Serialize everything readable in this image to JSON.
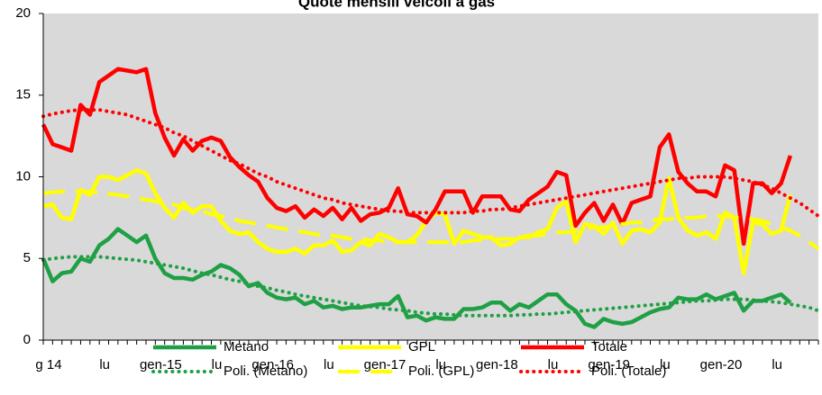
{
  "chart_data": {
    "type": "line",
    "title": "Quote mensili veicoli a gas",
    "categories": [
      "g 14",
      null,
      null,
      null,
      null,
      null,
      "lu",
      null,
      null,
      null,
      null,
      null,
      "gen-15",
      null,
      null,
      null,
      null,
      null,
      "lu",
      null,
      null,
      null,
      null,
      null,
      "gen-16",
      null,
      null,
      null,
      null,
      null,
      "lu",
      null,
      null,
      null,
      null,
      null,
      "gen-17",
      null,
      null,
      null,
      null,
      null,
      "lu",
      null,
      null,
      null,
      null,
      null,
      "gen-18",
      null,
      null,
      null,
      null,
      null,
      "lu",
      null,
      null,
      null,
      null,
      null,
      "gen-19",
      null,
      null,
      null,
      null,
      null,
      "lu",
      null,
      null,
      null,
      null,
      null,
      "gen-20",
      null,
      null,
      null,
      null,
      null,
      "lu",
      null,
      null,
      null,
      null,
      null
    ],
    "ylim": [
      0,
      20
    ],
    "yticks": [
      0,
      5,
      10,
      15,
      20
    ],
    "grid": false,
    "background": "#d9d9d9",
    "series": [
      {
        "name": "Metano",
        "color": "#1fa045",
        "style": "solid",
        "values": [
          5.0,
          3.6,
          4.1,
          4.2,
          5.0,
          4.8,
          5.8,
          6.2,
          6.8,
          6.4,
          6.0,
          6.4,
          5.0,
          4.1,
          3.8,
          3.8,
          3.7,
          4.0,
          4.2,
          4.6,
          4.4,
          4.0,
          3.3,
          3.5,
          2.9,
          2.6,
          2.5,
          2.6,
          2.2,
          2.4,
          2.0,
          2.1,
          1.9,
          2.0,
          2.0,
          2.1,
          2.2,
          2.2,
          2.7,
          1.4,
          1.5,
          1.2,
          1.4,
          1.3,
          1.3,
          1.9,
          1.9,
          2.0,
          2.3,
          2.3,
          1.8,
          2.2,
          2.0,
          2.4,
          2.8,
          2.8,
          2.2,
          1.8,
          1.0,
          0.8,
          1.3,
          1.1,
          1.0,
          1.1,
          1.4,
          1.7,
          1.9,
          2.0,
          2.6,
          2.5,
          2.5,
          2.8,
          2.5,
          2.7,
          2.9,
          1.8,
          2.4,
          2.4,
          2.6,
          2.8,
          2.3,
          null,
          null,
          null
        ]
      },
      {
        "name": "GPL",
        "color": "#ffff00",
        "style": "solid",
        "values": [
          8.2,
          8.3,
          7.5,
          7.4,
          9.2,
          8.9,
          10.0,
          10.0,
          9.8,
          10.1,
          10.4,
          10.2,
          9.0,
          8.1,
          7.5,
          8.4,
          7.8,
          8.2,
          8.2,
          7.3,
          6.7,
          6.5,
          6.6,
          6.0,
          5.6,
          5.4,
          5.4,
          5.6,
          5.3,
          5.8,
          5.8,
          6.1,
          5.4,
          5.5,
          6.0,
          5.8,
          6.5,
          6.3,
          6.0,
          6.0,
          6.4,
          7.3,
          7.8,
          7.7,
          5.9,
          6.7,
          6.5,
          6.3,
          6.3,
          5.8,
          5.9,
          6.3,
          6.3,
          6.6,
          6.8,
          8.1,
          8.5,
          6.0,
          7.1,
          7.0,
          6.5,
          7.2,
          5.9,
          6.7,
          6.8,
          6.6,
          7.2,
          9.9,
          7.5,
          6.7,
          6.4,
          6.6,
          6.2,
          7.8,
          7.5,
          4.1,
          7.2,
          7.1,
          6.5,
          6.7,
          8.9,
          null,
          null,
          null
        ]
      },
      {
        "name": "Totale",
        "color": "#ff0000",
        "style": "solid",
        "values": [
          13.2,
          12.0,
          11.8,
          11.6,
          14.4,
          13.8,
          15.8,
          16.2,
          16.6,
          16.5,
          16.4,
          16.6,
          13.9,
          12.4,
          11.3,
          12.3,
          11.6,
          12.2,
          12.4,
          12.2,
          11.2,
          10.6,
          10.1,
          9.7,
          8.7,
          8.1,
          7.9,
          8.2,
          7.5,
          8.0,
          7.6,
          8.1,
          7.4,
          8.1,
          7.3,
          7.7,
          7.8,
          8.1,
          9.3,
          7.7,
          7.6,
          7.2,
          8.0,
          9.1,
          9.1,
          9.1,
          7.8,
          8.8,
          8.8,
          8.8,
          8.0,
          7.9,
          8.6,
          9.0,
          9.4,
          10.3,
          10.1,
          7.0,
          7.8,
          8.4,
          7.3,
          8.3,
          7.1,
          8.4,
          8.6,
          8.8,
          11.8,
          12.6,
          10.3,
          9.6,
          9.1,
          9.1,
          8.8,
          10.7,
          10.4,
          5.9,
          9.6,
          9.6,
          9.0,
          9.6,
          11.3,
          null,
          null,
          null
        ]
      },
      {
        "name": "Poli. (Metano)",
        "color": "#1fa045",
        "style": "dotted",
        "values": [
          4.9,
          5.0,
          5.05,
          5.1,
          5.1,
          5.1,
          5.1,
          5.05,
          5.0,
          4.95,
          4.9,
          4.8,
          4.7,
          4.6,
          4.5,
          4.4,
          4.25,
          4.1,
          4.0,
          3.85,
          3.7,
          3.6,
          3.45,
          3.3,
          3.2,
          3.05,
          2.95,
          2.8,
          2.7,
          2.6,
          2.5,
          2.4,
          2.3,
          2.2,
          2.1,
          2.05,
          2.0,
          1.9,
          1.85,
          1.8,
          1.7,
          1.65,
          1.6,
          1.6,
          1.55,
          1.5,
          1.5,
          1.5,
          1.5,
          1.5,
          1.5,
          1.55,
          1.55,
          1.6,
          1.6,
          1.65,
          1.7,
          1.75,
          1.8,
          1.85,
          1.9,
          1.95,
          2.0,
          2.05,
          2.1,
          2.15,
          2.2,
          2.25,
          2.3,
          2.35,
          2.4,
          2.4,
          2.45,
          2.5,
          2.5,
          2.5,
          2.45,
          2.4,
          2.35,
          2.3,
          2.2,
          2.1,
          2.0,
          1.8
        ]
      },
      {
        "name": "Poli. (GPL)",
        "color": "#ffff00",
        "style": "dashed",
        "values": [
          9.0,
          9.05,
          9.1,
          9.1,
          9.1,
          9.1,
          9.0,
          8.95,
          8.9,
          8.8,
          8.7,
          8.6,
          8.5,
          8.4,
          8.3,
          8.1,
          8.0,
          7.9,
          7.7,
          7.6,
          7.5,
          7.3,
          7.2,
          7.1,
          7.0,
          6.9,
          6.8,
          6.7,
          6.6,
          6.5,
          6.4,
          6.4,
          6.3,
          6.2,
          6.2,
          6.1,
          6.1,
          6.0,
          6.0,
          6.0,
          6.0,
          6.0,
          6.0,
          6.0,
          6.0,
          6.0,
          6.1,
          6.1,
          6.1,
          6.2,
          6.2,
          6.3,
          6.4,
          6.4,
          6.5,
          6.6,
          6.6,
          6.7,
          6.8,
          6.9,
          6.9,
          7.0,
          7.1,
          7.2,
          7.2,
          7.3,
          7.4,
          7.4,
          7.5,
          7.5,
          7.5,
          7.6,
          7.6,
          7.6,
          7.5,
          7.5,
          7.4,
          7.3,
          7.1,
          6.9,
          6.7,
          6.4,
          6.0,
          5.6
        ]
      },
      {
        "name": "Poli. (Totale)",
        "color": "#ff0000",
        "style": "dotted",
        "values": [
          13.7,
          13.85,
          13.95,
          14.05,
          14.1,
          14.1,
          14.1,
          14.0,
          13.9,
          13.8,
          13.6,
          13.4,
          13.2,
          13.0,
          12.7,
          12.5,
          12.2,
          11.9,
          11.6,
          11.3,
          11.0,
          10.8,
          10.5,
          10.2,
          10.0,
          9.7,
          9.5,
          9.3,
          9.1,
          8.9,
          8.7,
          8.6,
          8.4,
          8.3,
          8.2,
          8.1,
          8.0,
          7.9,
          7.9,
          7.8,
          7.8,
          7.8,
          7.8,
          7.8,
          7.8,
          7.8,
          7.9,
          7.9,
          8.0,
          8.0,
          8.1,
          8.2,
          8.3,
          8.4,
          8.5,
          8.6,
          8.7,
          8.8,
          8.9,
          9.0,
          9.1,
          9.2,
          9.3,
          9.4,
          9.5,
          9.6,
          9.7,
          9.8,
          9.9,
          9.9,
          10.0,
          10.0,
          10.0,
          10.0,
          9.9,
          9.8,
          9.7,
          9.5,
          9.3,
          9.0,
          8.7,
          8.4,
          8.0,
          7.6
        ]
      }
    ]
  }
}
